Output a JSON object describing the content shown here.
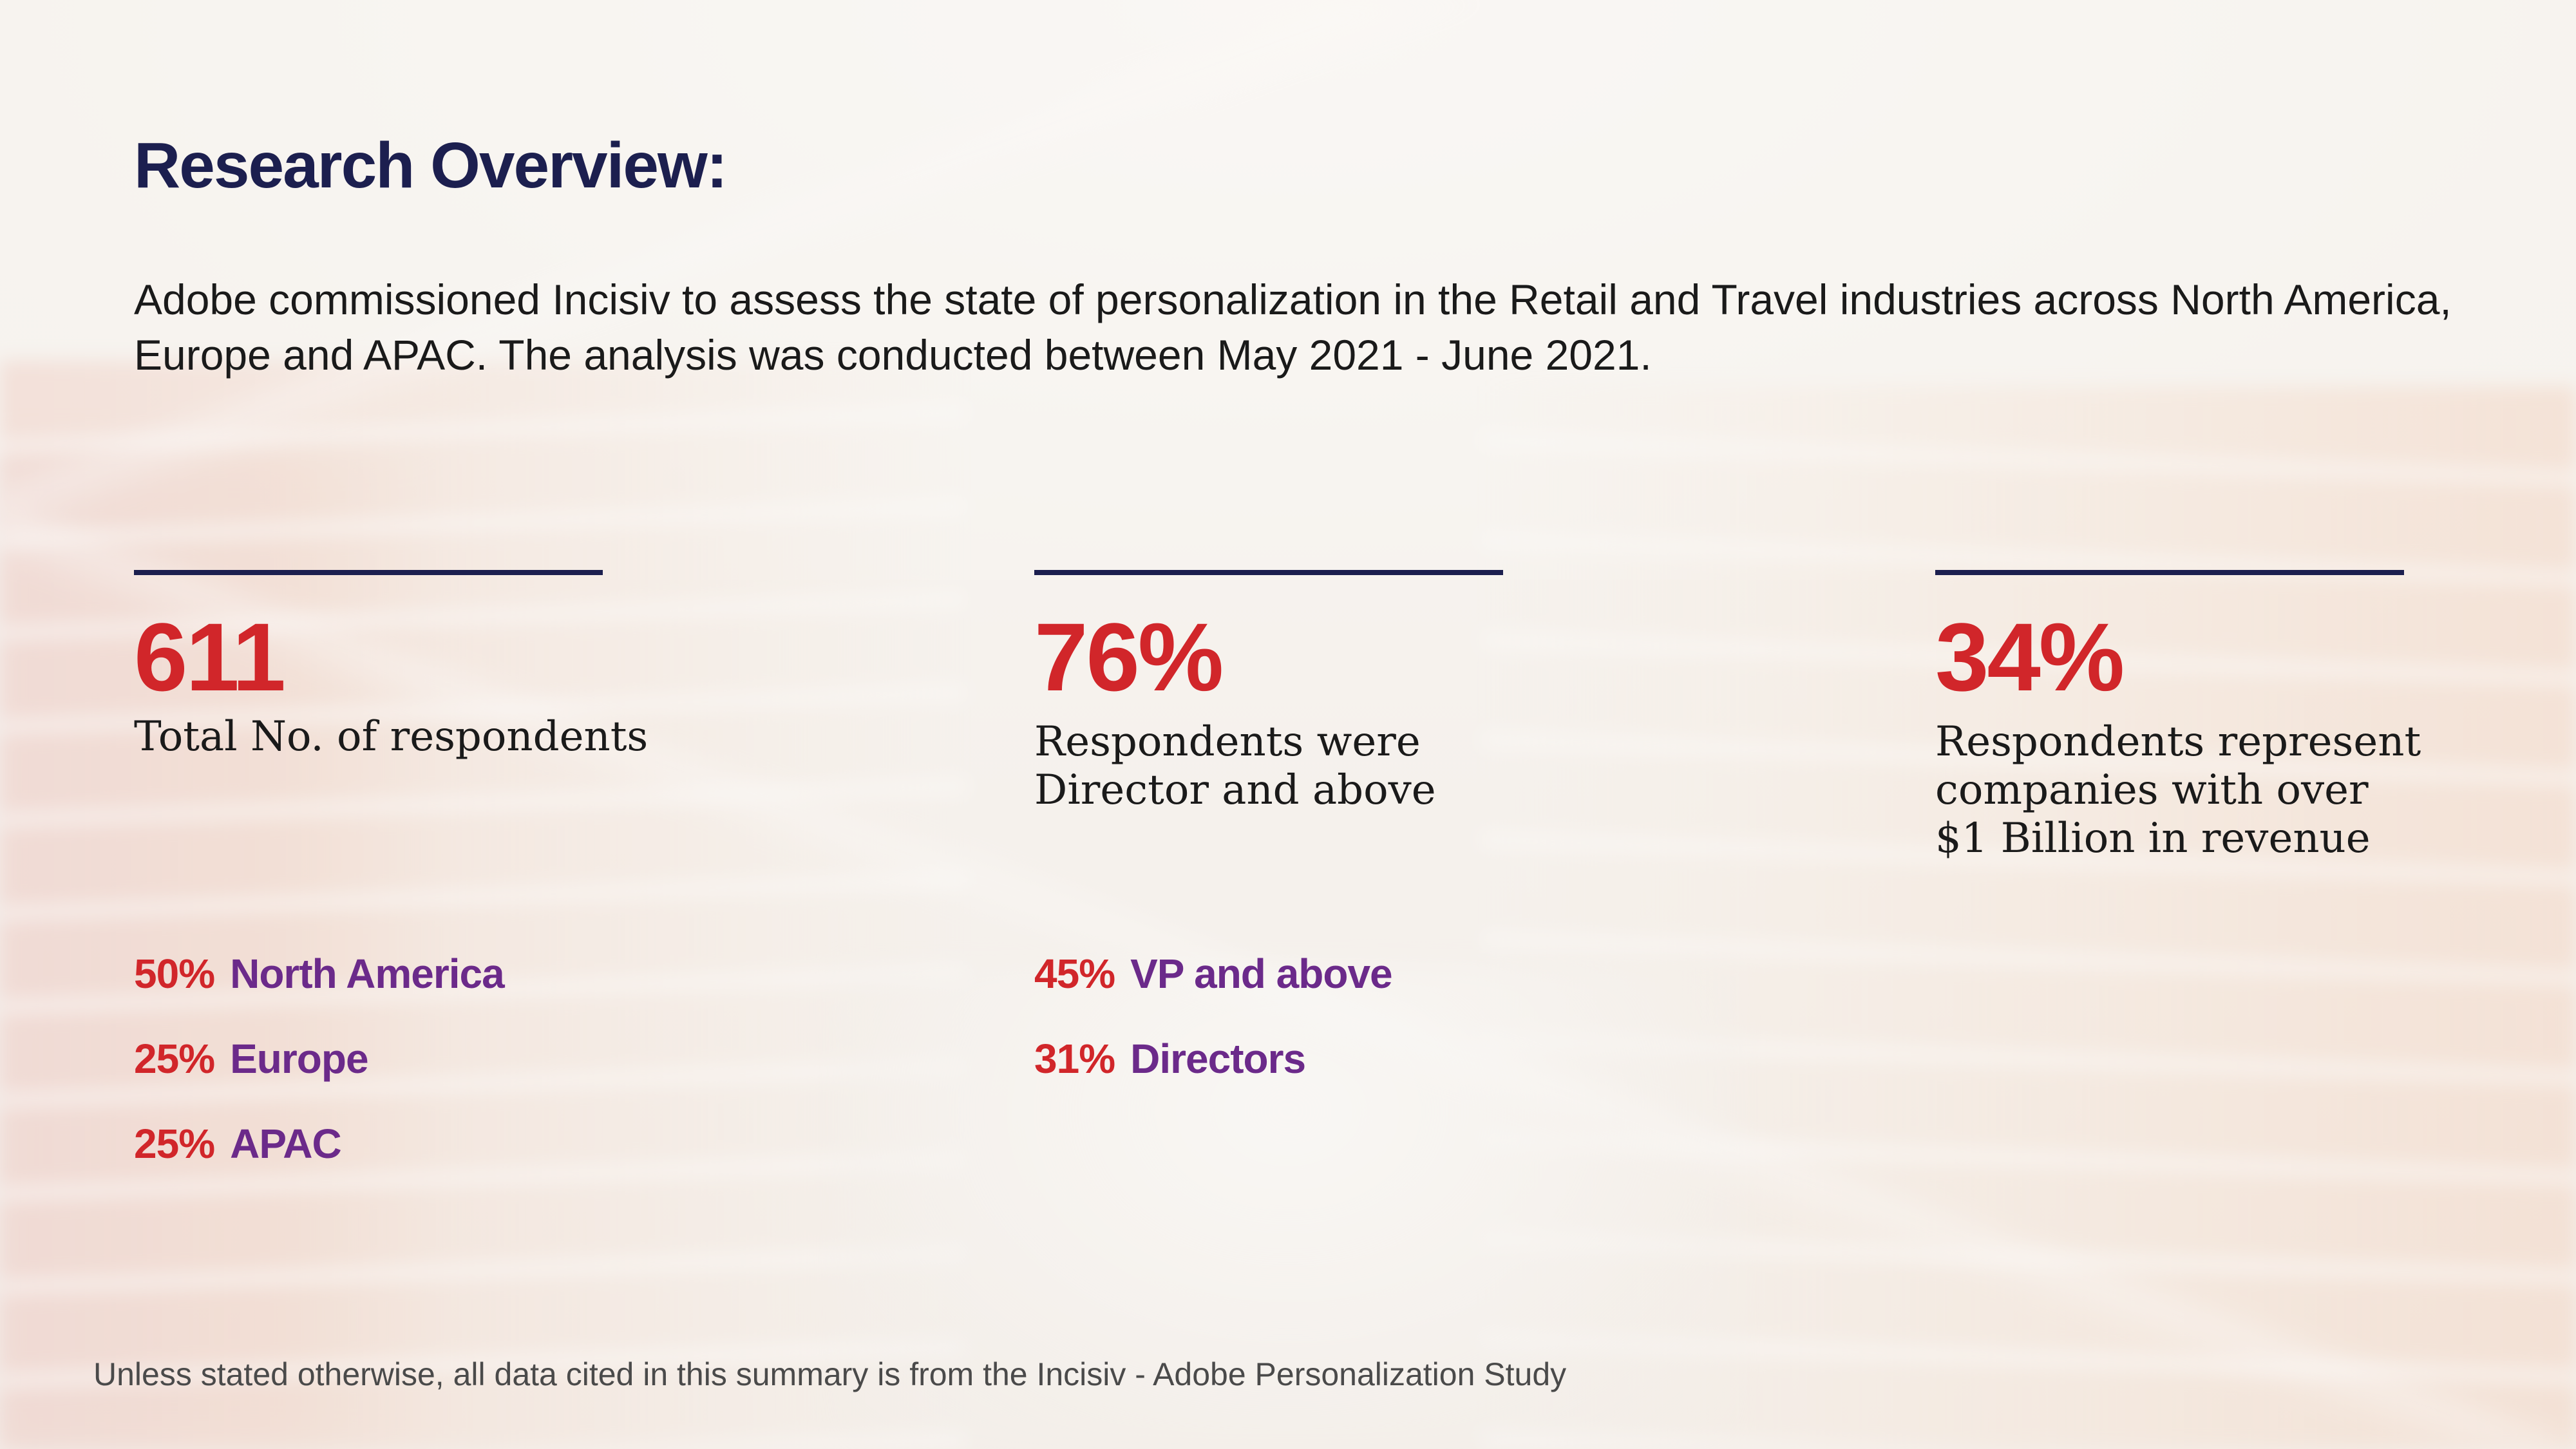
{
  "title": "Research Overview:",
  "intro": "Adobe commissioned Incisiv to assess the state of personalization in the Retail and Travel industries across North America, Europe and APAC. The analysis was conducted between May 2021 - June 2021.",
  "stats": [
    {
      "value": "611",
      "description": "Total No. of respondents",
      "breakdown": [
        {
          "pct": "50%",
          "label": "North America"
        },
        {
          "pct": "25%",
          "label": "Europe"
        },
        {
          "pct": "25%",
          "label": "APAC"
        }
      ]
    },
    {
      "value": "76%",
      "description_lines": [
        "Respondents were",
        "Director and above"
      ],
      "breakdown": [
        {
          "pct": "45%",
          "label": "VP and above"
        },
        {
          "pct": "31%",
          "label": "Directors"
        }
      ]
    },
    {
      "value": "34%",
      "description_lines": [
        "Respondents represent",
        "companies with over",
        "$1 Billion in revenue"
      ]
    }
  ],
  "footnote": "Unless stated otherwise, all data cited in this summary is from the Incisiv - Adobe Personalization Study",
  "colors": {
    "title": "#1c1f4f",
    "accent_red": "#d1262a",
    "accent_purple": "#6b2a8a",
    "rule": "#1c1f4f"
  }
}
